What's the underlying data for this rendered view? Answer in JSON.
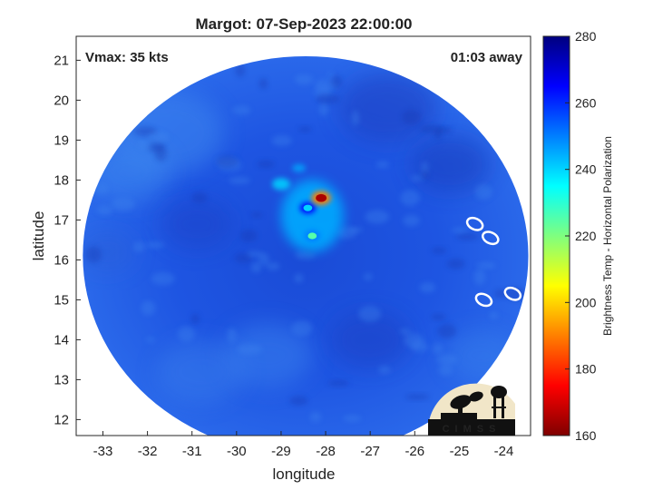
{
  "chart_data": {
    "type": "heatmap",
    "title": "Margot: 07-Sep-2023 22:00:00",
    "xlabel": "longitude",
    "ylabel": "latitude",
    "xlim": [
      -33.6,
      -23.4
    ],
    "ylim": [
      11.6,
      21.6
    ],
    "xticks": [
      -33,
      -32,
      -31,
      -30,
      -29,
      -28,
      -27,
      -26,
      -25,
      -24
    ],
    "yticks": [
      12,
      13,
      14,
      15,
      16,
      17,
      18,
      19,
      20,
      21
    ],
    "annotations": {
      "vmax": "Vmax: 35 kts",
      "time_away": "01:03 away"
    },
    "colorbar": {
      "label": "Brightness Temp - Horizontal Polarization",
      "range": [
        160,
        280
      ],
      "ticks": [
        160,
        180,
        200,
        220,
        240,
        260,
        280
      ]
    },
    "storm_center": {
      "lon": -28.1,
      "lat": 17.5
    },
    "cold_cores": [
      {
        "lon": -28.1,
        "lat": 17.55,
        "value": 165
      },
      {
        "lon": -28.3,
        "lat": 16.6,
        "value": 225
      },
      {
        "lon": -28.4,
        "lat": 17.3,
        "value": 240
      }
    ],
    "swath": {
      "center_lon": -28.45,
      "center_lat": 16.1,
      "radius_deg": 5.0
    },
    "islands": [
      {
        "lon": -24.65,
        "lat": 16.9
      },
      {
        "lon": -24.3,
        "lat": 16.55
      },
      {
        "lon": -24.45,
        "lat": 15.0
      },
      {
        "lon": -23.8,
        "lat": 15.15
      }
    ],
    "grid": false,
    "colormap": "jet",
    "logo_text": "CIMSS"
  }
}
